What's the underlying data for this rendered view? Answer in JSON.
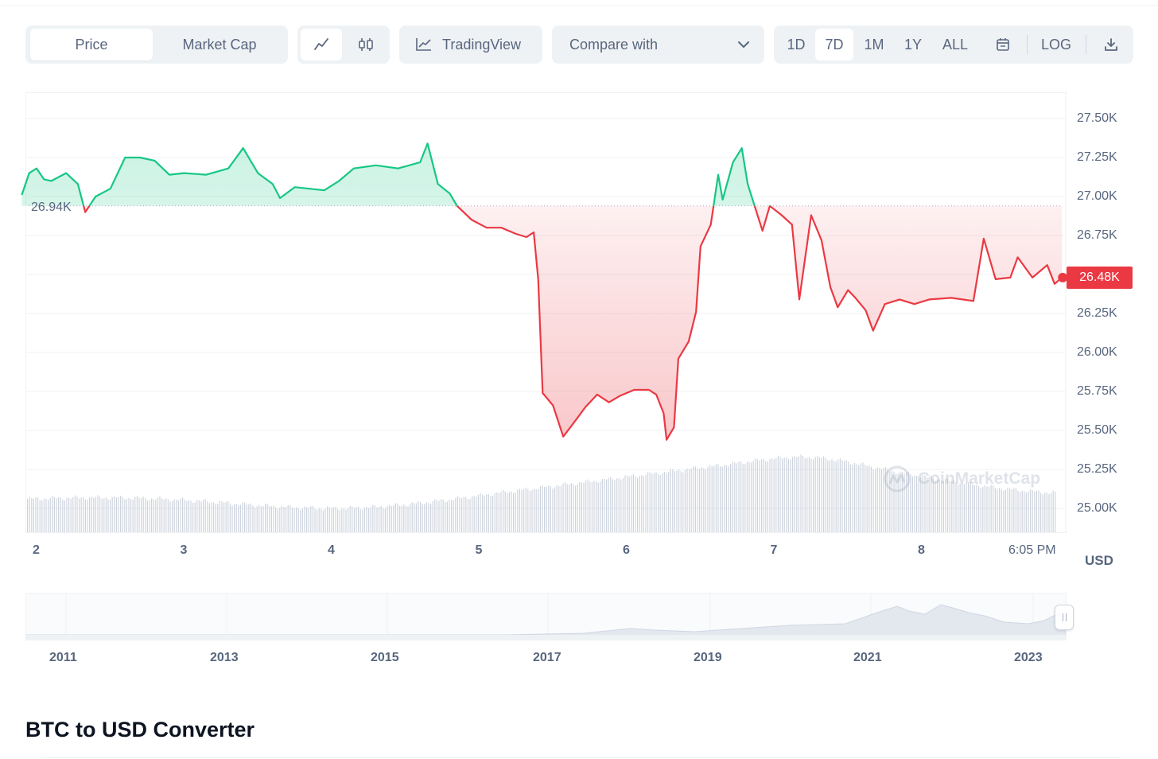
{
  "toolbar": {
    "view_tabs": [
      {
        "label": "Price",
        "active": true
      },
      {
        "label": "Market Cap",
        "active": false
      }
    ],
    "chart_type": [
      {
        "icon": "line-chart-icon",
        "active": true
      },
      {
        "icon": "candlestick-icon",
        "active": false
      }
    ],
    "tradingview_label": "TradingView",
    "compare_label": "Compare with",
    "ranges": [
      {
        "label": "1D",
        "active": false
      },
      {
        "label": "7D",
        "active": true
      },
      {
        "label": "1M",
        "active": false
      },
      {
        "label": "1Y",
        "active": false
      },
      {
        "label": "ALL",
        "active": false
      }
    ],
    "log_label": "LOG"
  },
  "chart": {
    "ref_label": "26.94K",
    "price_label": "26.48K",
    "currency": "USD",
    "watermark": "CoinMarketCap",
    "colors": {
      "up": "#16c784",
      "down": "#ea3943",
      "grid": "#eff2f5",
      "volume": "#a6b0c3"
    }
  },
  "chart_data": {
    "type": "line",
    "reference_price": 26940,
    "last_price": 26480,
    "ylim": [
      24800,
      27650
    ],
    "y_ticks": [
      "25.00K",
      "25.25K",
      "25.50K",
      "25.75K",
      "26.00K",
      "26.25K",
      "26.50K",
      "26.75K",
      "27.00K",
      "27.25K",
      "27.50K"
    ],
    "x_ticks": [
      "2",
      "3",
      "4",
      "5",
      "6",
      "7",
      "8",
      "6:05 PM"
    ],
    "series": [
      {
        "values": [
          {
            "x": 1.9,
            "y": 27010
          },
          {
            "x": 1.95,
            "y": 27150
          },
          {
            "x": 2.0,
            "y": 27180
          },
          {
            "x": 2.05,
            "y": 27110
          },
          {
            "x": 2.1,
            "y": 27100
          },
          {
            "x": 2.2,
            "y": 27150
          },
          {
            "x": 2.28,
            "y": 27080
          },
          {
            "x": 2.33,
            "y": 26900
          },
          {
            "x": 2.4,
            "y": 27000
          },
          {
            "x": 2.5,
            "y": 27050
          },
          {
            "x": 2.6,
            "y": 27250
          },
          {
            "x": 2.7,
            "y": 27250
          },
          {
            "x": 2.8,
            "y": 27230
          },
          {
            "x": 2.9,
            "y": 27140
          },
          {
            "x": 3.0,
            "y": 27150
          },
          {
            "x": 3.15,
            "y": 27140
          },
          {
            "x": 3.3,
            "y": 27180
          },
          {
            "x": 3.4,
            "y": 27310
          },
          {
            "x": 3.5,
            "y": 27150
          },
          {
            "x": 3.6,
            "y": 27080
          },
          {
            "x": 3.65,
            "y": 26990
          },
          {
            "x": 3.75,
            "y": 27060
          },
          {
            "x": 3.85,
            "y": 27050
          },
          {
            "x": 3.95,
            "y": 27040
          },
          {
            "x": 4.05,
            "y": 27100
          },
          {
            "x": 4.15,
            "y": 27180
          },
          {
            "x": 4.3,
            "y": 27200
          },
          {
            "x": 4.45,
            "y": 27180
          },
          {
            "x": 4.6,
            "y": 27220
          },
          {
            "x": 4.65,
            "y": 27340
          },
          {
            "x": 4.72,
            "y": 27080
          },
          {
            "x": 4.8,
            "y": 27020
          },
          {
            "x": 4.85,
            "y": 26940
          },
          {
            "x": 4.95,
            "y": 26850
          },
          {
            "x": 5.05,
            "y": 26800
          },
          {
            "x": 5.15,
            "y": 26800
          },
          {
            "x": 5.25,
            "y": 26760
          },
          {
            "x": 5.32,
            "y": 26740
          },
          {
            "x": 5.37,
            "y": 26770
          },
          {
            "x": 5.4,
            "y": 26470
          },
          {
            "x": 5.43,
            "y": 25740
          },
          {
            "x": 5.5,
            "y": 25660
          },
          {
            "x": 5.57,
            "y": 25460
          },
          {
            "x": 5.65,
            "y": 25560
          },
          {
            "x": 5.72,
            "y": 25650
          },
          {
            "x": 5.8,
            "y": 25730
          },
          {
            "x": 5.88,
            "y": 25680
          },
          {
            "x": 5.95,
            "y": 25720
          },
          {
            "x": 6.05,
            "y": 25760
          },
          {
            "x": 6.15,
            "y": 25760
          },
          {
            "x": 6.2,
            "y": 25730
          },
          {
            "x": 6.25,
            "y": 25610
          },
          {
            "x": 6.27,
            "y": 25440
          },
          {
            "x": 6.32,
            "y": 25520
          },
          {
            "x": 6.35,
            "y": 25960
          },
          {
            "x": 6.42,
            "y": 26070
          },
          {
            "x": 6.47,
            "y": 26260
          },
          {
            "x": 6.5,
            "y": 26680
          },
          {
            "x": 6.57,
            "y": 26820
          },
          {
            "x": 6.62,
            "y": 27140
          },
          {
            "x": 6.65,
            "y": 26980
          },
          {
            "x": 6.72,
            "y": 27220
          },
          {
            "x": 6.78,
            "y": 27310
          },
          {
            "x": 6.82,
            "y": 27080
          },
          {
            "x": 6.87,
            "y": 26930
          },
          {
            "x": 6.92,
            "y": 26780
          },
          {
            "x": 6.97,
            "y": 26940
          },
          {
            "x": 7.05,
            "y": 26880
          },
          {
            "x": 7.12,
            "y": 26820
          },
          {
            "x": 7.17,
            "y": 26340
          },
          {
            "x": 7.25,
            "y": 26880
          },
          {
            "x": 7.32,
            "y": 26720
          },
          {
            "x": 7.38,
            "y": 26420
          },
          {
            "x": 7.43,
            "y": 26290
          },
          {
            "x": 7.5,
            "y": 26400
          },
          {
            "x": 7.55,
            "y": 26350
          },
          {
            "x": 7.62,
            "y": 26270
          },
          {
            "x": 7.67,
            "y": 26140
          },
          {
            "x": 7.75,
            "y": 26310
          },
          {
            "x": 7.85,
            "y": 26340
          },
          {
            "x": 7.95,
            "y": 26310
          },
          {
            "x": 8.05,
            "y": 26340
          },
          {
            "x": 8.2,
            "y": 26350
          },
          {
            "x": 8.35,
            "y": 26330
          },
          {
            "x": 8.42,
            "y": 26730
          },
          {
            "x": 8.5,
            "y": 26470
          },
          {
            "x": 8.6,
            "y": 26480
          },
          {
            "x": 8.65,
            "y": 26610
          },
          {
            "x": 8.75,
            "y": 26480
          },
          {
            "x": 8.85,
            "y": 26560
          },
          {
            "x": 8.9,
            "y": 26440
          },
          {
            "x": 8.95,
            "y": 26480
          }
        ]
      }
    ],
    "volume": {
      "x_range": [
        1.9,
        8.95
      ]
    },
    "navigator": {
      "x_ticks": [
        "2011",
        "2013",
        "2015",
        "2017",
        "2019",
        "2021",
        "2023"
      ]
    }
  },
  "converter": {
    "title": "BTC to USD Converter"
  }
}
